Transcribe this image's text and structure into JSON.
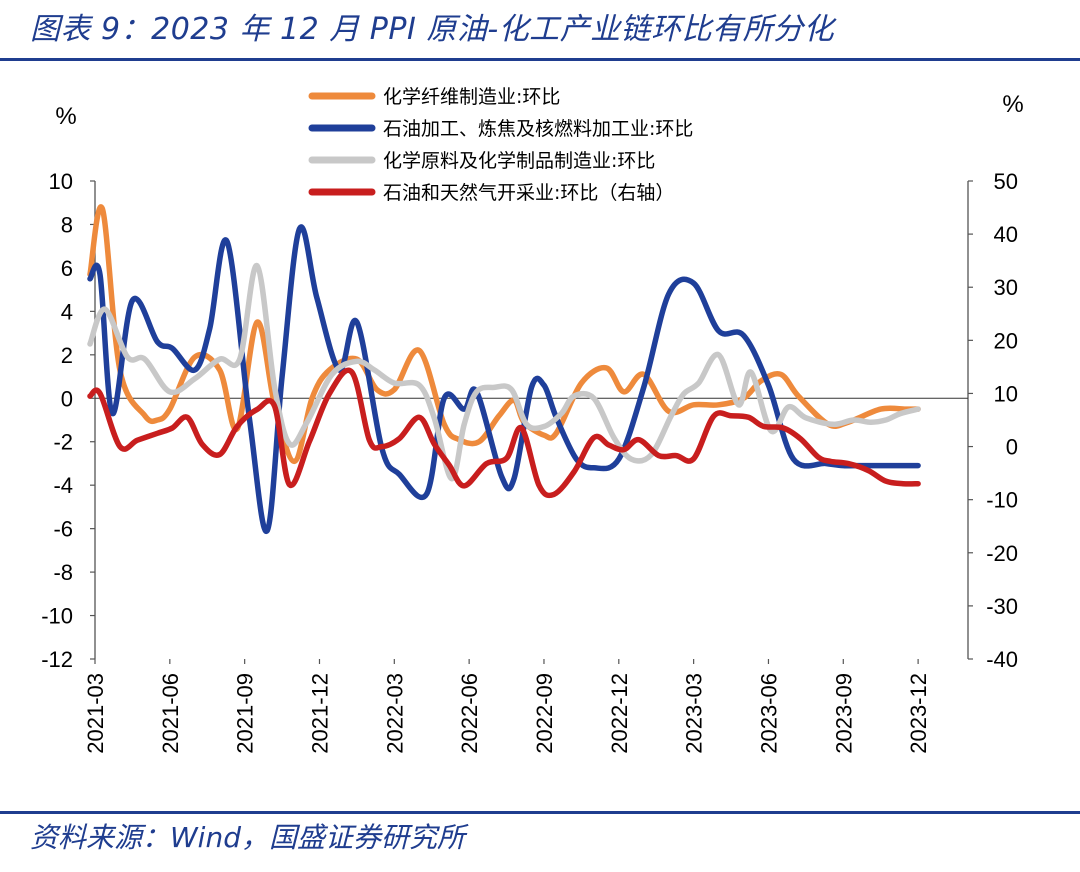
{
  "header": {
    "title": "图表 9：2023 年 12 月 PPI 原油-化工产业链环比有所分化"
  },
  "footer": {
    "source": "资料来源：Wind，国盛证券研究所"
  },
  "chart_data": {
    "type": "line",
    "left_unit": "%",
    "right_unit": "%",
    "y_left": {
      "min": -12,
      "max": 10,
      "step": 2,
      "ticks": [
        "10",
        "8",
        "6",
        "4",
        "2",
        "0",
        "-2",
        "-4",
        "-6",
        "-8",
        "-10",
        "-12"
      ]
    },
    "y_right": {
      "min": -40,
      "max": 50,
      "step": 10,
      "ticks": [
        "50",
        "40",
        "30",
        "20",
        "10",
        "0",
        "-10",
        "-20",
        "-30",
        "-40"
      ]
    },
    "x_range": [
      1,
      36
    ],
    "x_ticks": [
      {
        "x": 1,
        "label": "2021-03"
      },
      {
        "x": 4,
        "label": "2021-06"
      },
      {
        "x": 7,
        "label": "2021-09"
      },
      {
        "x": 10,
        "label": "2021-12"
      },
      {
        "x": 13,
        "label": "2022-03"
      },
      {
        "x": 16,
        "label": "2022-06"
      },
      {
        "x": 19,
        "label": "2022-09"
      },
      {
        "x": 22,
        "label": "2022-12"
      },
      {
        "x": 25,
        "label": "2023-03"
      },
      {
        "x": 28,
        "label": "2023-06"
      },
      {
        "x": 31,
        "label": "2023-09"
      },
      {
        "x": 34,
        "label": "2023-12"
      }
    ],
    "grid": false,
    "legend_position": "top-center",
    "series": [
      {
        "name": "化学纤维制造业:环比",
        "color": "#ee8a3c",
        "axis": "left",
        "x": [
          0.8,
          1.3,
          2,
          3,
          3.5,
          4,
          5,
          6,
          6.7,
          7.5,
          8.2,
          9,
          9.7,
          10.4,
          11.5,
          12.3,
          13,
          14,
          15,
          15.6,
          16.4,
          17.2,
          17.8,
          18.2,
          19,
          19.5,
          20.5,
          21.5,
          22.2,
          23,
          24,
          25,
          26,
          27,
          27.7,
          28.5,
          29.2,
          30.4,
          31.2,
          32.5,
          33.5,
          34
        ],
        "y": [
          5.7,
          8.7,
          1.3,
          -0.8,
          -1.0,
          -0.5,
          1.9,
          1.3,
          -1.4,
          3.5,
          -0.3,
          -2.9,
          0.0,
          1.3,
          1.8,
          0.4,
          0.4,
          2.2,
          -1.2,
          -1.9,
          -2.0,
          -0.8,
          -0.1,
          -1.1,
          -1.7,
          -1.6,
          0.7,
          1.4,
          0.3,
          1.1,
          -0.6,
          -0.3,
          -0.3,
          0.0,
          0.8,
          1.1,
          0.1,
          -1.2,
          -1.1,
          -0.5,
          -0.5,
          -0.5
        ]
      },
      {
        "name": "石油加工、炼焦及核燃料加工业:环比",
        "color": "#1f3f9a",
        "axis": "left",
        "x": [
          0.8,
          1.2,
          1.7,
          2.5,
          3.5,
          4.1,
          5,
          5.6,
          6.3,
          7.2,
          7.9,
          8.5,
          9.2,
          9.9,
          10.8,
          11.5,
          12.5,
          13.2,
          14.3,
          15,
          15.8,
          16.3,
          17.3,
          17.8,
          18.5,
          19,
          19.5,
          20.3,
          21,
          22,
          23,
          24,
          25,
          26,
          27,
          28,
          29,
          30.3,
          31,
          31.8,
          32.5,
          33.3,
          34
        ],
        "y": [
          5.5,
          5.7,
          -0.7,
          4.5,
          2.6,
          2.3,
          1.3,
          3.2,
          7.2,
          -1.0,
          -6.1,
          1.0,
          7.8,
          4.6,
          1.3,
          3.5,
          -2.3,
          -3.5,
          -4.4,
          0.0,
          -0.5,
          0.3,
          -3.6,
          -3.7,
          0.5,
          0.6,
          -0.9,
          -2.8,
          -3.2,
          -2.8,
          0.5,
          4.8,
          5.3,
          3.1,
          2.9,
          0.6,
          -2.8,
          -3.0,
          -3.1,
          -3.1,
          -3.1,
          -3.1,
          -3.1
        ]
      },
      {
        "name": "化学原料及化学制品制造业:环比",
        "color": "#c8c8c8",
        "axis": "left",
        "x": [
          0.8,
          1.4,
          2.3,
          3,
          4,
          5,
          6,
          6.8,
          7.5,
          8.2,
          8.8,
          9.5,
          10.5,
          11.5,
          12.2,
          13,
          14,
          14.6,
          15.3,
          15.8,
          16.3,
          17,
          17.7,
          18.3,
          19,
          19.7,
          20.2,
          21,
          21.8,
          22.5,
          23.3,
          24.1,
          24.6,
          25.2,
          26,
          26.8,
          27.3,
          28.1,
          28.8,
          29.5,
          30.6,
          31.4,
          32.1,
          32.7,
          33.3,
          34
        ],
        "y": [
          2.5,
          4.1,
          1.9,
          1.8,
          0.3,
          0.9,
          1.8,
          1.8,
          6.1,
          0.5,
          -2.1,
          -1.1,
          1.1,
          1.7,
          1.3,
          0.7,
          0.6,
          -0.9,
          -3.7,
          -1.2,
          0.3,
          0.5,
          0.4,
          -1.2,
          -1.3,
          -0.7,
          0.1,
          0.0,
          -1.8,
          -2.8,
          -2.6,
          -0.8,
          0.2,
          0.7,
          2.0,
          -0.3,
          1.2,
          -1.5,
          -0.4,
          -0.9,
          -1.2,
          -1.0,
          -1.1,
          -1.0,
          -0.7,
          -0.5
        ]
      },
      {
        "name": "石油和天然气开采业:环比（右轴）",
        "color": "#c81e1e",
        "axis": "right",
        "x": [
          0.8,
          1.2,
          2,
          2.7,
          3.5,
          4.1,
          4.7,
          5.3,
          6,
          6.7,
          7.5,
          8.2,
          8.8,
          9.6,
          10.4,
          11.3,
          12,
          12.5,
          13.2,
          14,
          14.6,
          15.2,
          15.8,
          16.7,
          17.5,
          18.1,
          18.8,
          19.4,
          20.2,
          21,
          21.6,
          22.2,
          22.8,
          23.6,
          24.3,
          25,
          25.8,
          26.5,
          27.2,
          27.8,
          28.6,
          29.3,
          30,
          30.5,
          31.2,
          32,
          32.7,
          33.4,
          34
        ],
        "y": [
          9.5,
          10.0,
          0.0,
          1.2,
          2.5,
          3.5,
          5.5,
          0.4,
          -1.5,
          3.8,
          7.0,
          7.6,
          -7.2,
          1.0,
          10.0,
          14.0,
          1.2,
          0.0,
          1.5,
          5.5,
          0.5,
          -3.5,
          -7.4,
          -3.2,
          -2.2,
          3.5,
          -7.3,
          -9.0,
          -4.8,
          1.7,
          0.3,
          -0.6,
          1.3,
          -1.7,
          -1.7,
          -2.3,
          5.7,
          5.8,
          5.5,
          3.8,
          3.5,
          1.4,
          -2.0,
          -2.8,
          -3.2,
          -4.5,
          -6.5,
          -7.0,
          -7.0
        ]
      }
    ]
  }
}
